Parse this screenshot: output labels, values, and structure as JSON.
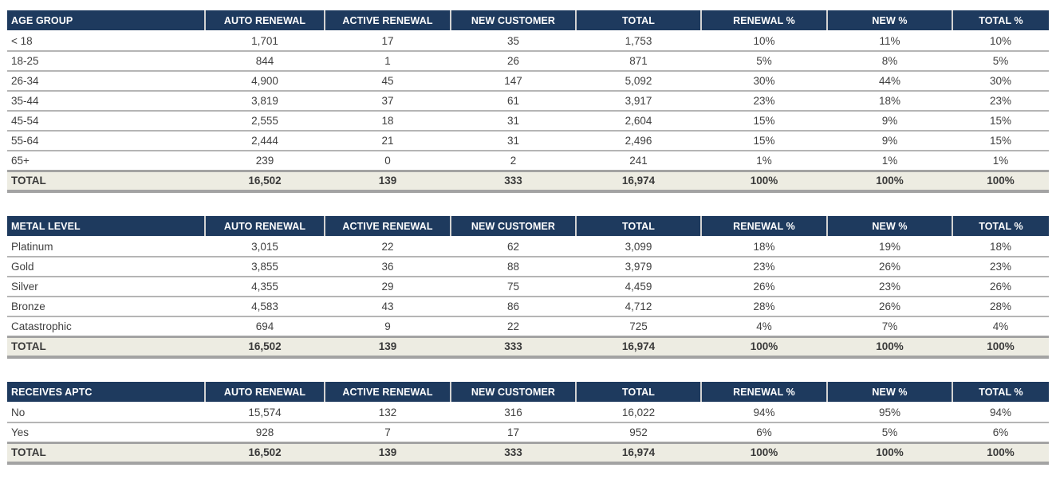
{
  "colors": {
    "header_bg": "#1e3a5e",
    "header_text": "#ffffff",
    "header_divider": "#d2d2d2",
    "body_text": "#3f3f3f",
    "row_border": "#b5b5b5",
    "thick_border": "#a3a3a3",
    "total_row_bg": "#edece2",
    "page_bg": "#ffffff"
  },
  "tables": [
    {
      "label_header": "AGE GROUP",
      "columns": [
        "AUTO RENEWAL",
        "ACTIVE RENEWAL",
        "NEW CUSTOMER",
        "TOTAL",
        "RENEWAL %",
        "NEW %",
        "TOTAL %"
      ],
      "rows": [
        {
          "label": "< 18",
          "values": [
            "1,701",
            "17",
            "35",
            "1,753",
            "10%",
            "11%",
            "10%"
          ]
        },
        {
          "label": "18-25",
          "values": [
            "844",
            "1",
            "26",
            "871",
            "5%",
            "8%",
            "5%"
          ]
        },
        {
          "label": "26-34",
          "values": [
            "4,900",
            "45",
            "147",
            "5,092",
            "30%",
            "44%",
            "30%"
          ]
        },
        {
          "label": "35-44",
          "values": [
            "3,819",
            "37",
            "61",
            "3,917",
            "23%",
            "18%",
            "23%"
          ]
        },
        {
          "label": "45-54",
          "values": [
            "2,555",
            "18",
            "31",
            "2,604",
            "15%",
            "9%",
            "15%"
          ]
        },
        {
          "label": "55-64",
          "values": [
            "2,444",
            "21",
            "31",
            "2,496",
            "15%",
            "9%",
            "15%"
          ]
        },
        {
          "label": "65+",
          "values": [
            "239",
            "0",
            "2",
            "241",
            "1%",
            "1%",
            "1%"
          ]
        }
      ],
      "total_row": {
        "label": "TOTAL",
        "values": [
          "16,502",
          "139",
          "333",
          "16,974",
          "100%",
          "100%",
          "100%"
        ]
      }
    },
    {
      "label_header": "METAL LEVEL",
      "columns": [
        "AUTO RENEWAL",
        "ACTIVE RENEWAL",
        "NEW CUSTOMER",
        "TOTAL",
        "RENEWAL %",
        "NEW %",
        "TOTAL %"
      ],
      "rows": [
        {
          "label": "Platinum",
          "values": [
            "3,015",
            "22",
            "62",
            "3,099",
            "18%",
            "19%",
            "18%"
          ]
        },
        {
          "label": "Gold",
          "values": [
            "3,855",
            "36",
            "88",
            "3,979",
            "23%",
            "26%",
            "23%"
          ]
        },
        {
          "label": "Silver",
          "values": [
            "4,355",
            "29",
            "75",
            "4,459",
            "26%",
            "23%",
            "26%"
          ]
        },
        {
          "label": "Bronze",
          "values": [
            "4,583",
            "43",
            "86",
            "4,712",
            "28%",
            "26%",
            "28%"
          ]
        },
        {
          "label": "Catastrophic",
          "values": [
            "694",
            "9",
            "22",
            "725",
            "4%",
            "7%",
            "4%"
          ]
        }
      ],
      "total_row": {
        "label": "TOTAL",
        "values": [
          "16,502",
          "139",
          "333",
          "16,974",
          "100%",
          "100%",
          "100%"
        ]
      }
    },
    {
      "label_header": "RECEIVES APTC",
      "columns": [
        "AUTO RENEWAL",
        "ACTIVE RENEWAL",
        "NEW CUSTOMER",
        "TOTAL",
        "RENEWAL %",
        "NEW %",
        "TOTAL %"
      ],
      "rows": [
        {
          "label": "No",
          "values": [
            "15,574",
            "132",
            "316",
            "16,022",
            "94%",
            "95%",
            "94%"
          ]
        },
        {
          "label": "Yes",
          "values": [
            "928",
            "7",
            "17",
            "952",
            "6%",
            "5%",
            "6%"
          ]
        }
      ],
      "total_row": {
        "label": "TOTAL",
        "values": [
          "16,502",
          "139",
          "333",
          "16,974",
          "100%",
          "100%",
          "100%"
        ]
      }
    }
  ]
}
